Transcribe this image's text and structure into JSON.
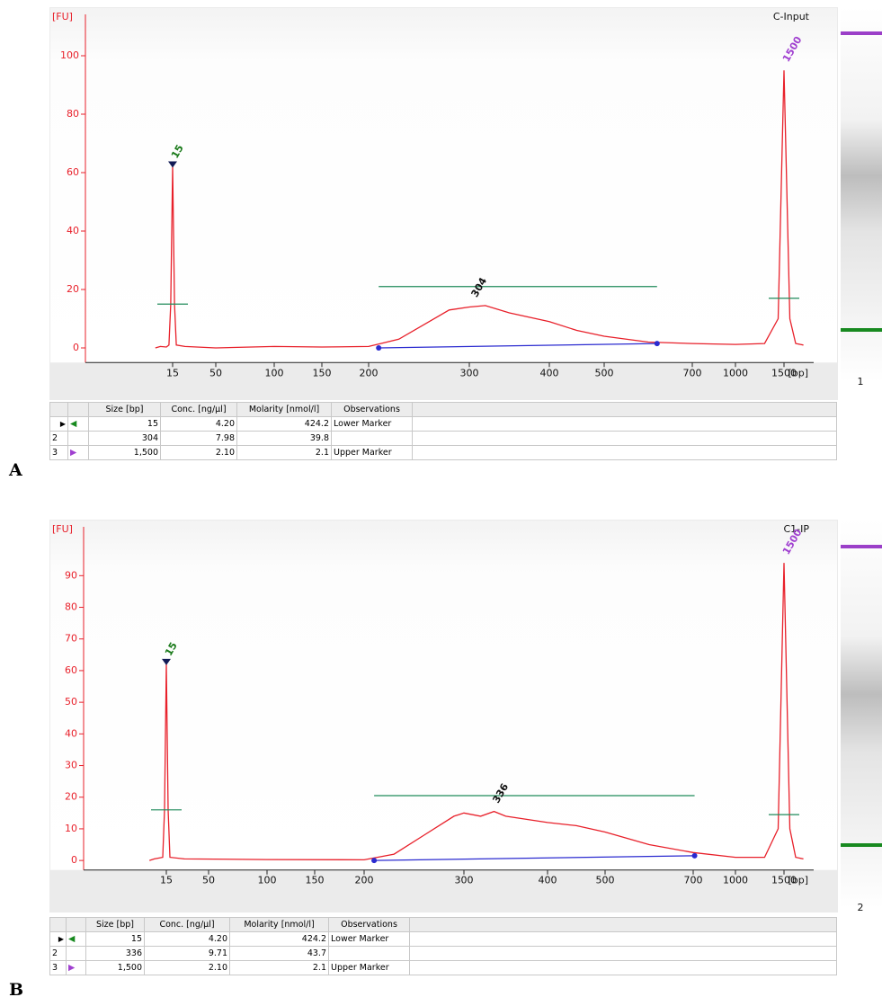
{
  "chart_data": [
    {
      "type": "line",
      "title": "C-Input",
      "y_label": "[FU]",
      "x_label": "[bp]",
      "ylim": [
        -5,
        114
      ],
      "yticks": [
        0,
        20,
        40,
        60,
        80,
        100
      ],
      "xticks": [
        15,
        50,
        100,
        150,
        200,
        300,
        400,
        500,
        700,
        1000,
        1500
      ],
      "series": [
        {
          "color": "#e8202a",
          "x": [
            1,
            5,
            10,
            12,
            13.5,
            15,
            16.5,
            18,
            25,
            50,
            100,
            150,
            200,
            230,
            260,
            280,
            300,
            320,
            350,
            400,
            450,
            500,
            600,
            700,
            1000,
            1300,
            1440,
            1500,
            1560,
            1620,
            1700
          ],
          "values": [
            0,
            0.5,
            0.3,
            1,
            15,
            62,
            15,
            1,
            0.5,
            0,
            0.5,
            0.3,
            0.5,
            3,
            9,
            13,
            14,
            14.5,
            12,
            9,
            6,
            4,
            2,
            1.5,
            1.2,
            1.5,
            10,
            95,
            10,
            1.5,
            1
          ]
        }
      ],
      "baseline": {
        "color": "#2b2bd0",
        "x": [
          210,
          620
        ],
        "values": [
          0,
          1.5
        ]
      },
      "region": {
        "color": "#1f8a5a",
        "x": [
          210,
          620
        ],
        "value": 21
      },
      "peaks": [
        {
          "x": 15,
          "value": 62,
          "half": 15,
          "color": "#1a7a1a"
        },
        {
          "x": 304,
          "value": 14.5,
          "color": "#111111"
        },
        {
          "x": 1500,
          "value": 95,
          "half": 17,
          "color": "#a040d0"
        }
      ]
    },
    {
      "type": "line",
      "title": "C1-IP",
      "y_label": "[FU]",
      "x_label": "[bp]",
      "ylim": [
        -3,
        106
      ],
      "yticks": [
        0,
        10,
        20,
        30,
        40,
        50,
        60,
        70,
        80,
        90
      ],
      "xticks": [
        15,
        50,
        100,
        150,
        200,
        300,
        400,
        500,
        700,
        1000,
        1500
      ],
      "series": [
        {
          "color": "#e8202a",
          "x": [
            1,
            5,
            12,
            13.5,
            15,
            16.5,
            18,
            30,
            100,
            200,
            230,
            260,
            290,
            300,
            320,
            336,
            350,
            400,
            450,
            500,
            600,
            700,
            1000,
            1300,
            1440,
            1500,
            1560,
            1620,
            1700
          ],
          "values": [
            0,
            0.5,
            1,
            16,
            62,
            16,
            1,
            0.5,
            0.3,
            0.2,
            2,
            8,
            14,
            15,
            14,
            15.5,
            14,
            12,
            11,
            9,
            5,
            2.5,
            1,
            1,
            10,
            94,
            10,
            1,
            0.5
          ]
        }
      ],
      "baseline": {
        "color": "#2b2bd0",
        "x": [
          210,
          710
        ],
        "values": [
          0,
          1.5
        ]
      },
      "region": {
        "color": "#1f8a5a",
        "x": [
          210,
          710
        ],
        "value": 20.5
      },
      "peaks": [
        {
          "x": 15,
          "value": 62,
          "half": 16,
          "color": "#1a7a1a"
        },
        {
          "x": 336,
          "value": 15.5,
          "color": "#111111"
        },
        {
          "x": 1500,
          "value": 94,
          "half": 14.5,
          "color": "#a040d0"
        }
      ]
    }
  ],
  "panels": [
    {
      "label": "A",
      "lane": "1",
      "table": {
        "columns": [
          "Size [bp]",
          "Conc. [ng/µl]",
          "Molarity [nmol/l]",
          "Observations"
        ],
        "rows": [
          {
            "cells": [
              "15",
              "4.20",
              "424.2",
              "Lower Marker"
            ]
          },
          {
            "num": "2",
            "cells": [
              "304",
              "7.98",
              "39.8"
            ]
          },
          {
            "num": "3",
            "cells": [
              "1,500",
              "2.10",
              "2.1",
              "Upper Marker"
            ]
          }
        ]
      }
    },
    {
      "label": "B",
      "lane": "2",
      "table": {
        "columns": [
          "Size [bp]",
          "Conc. [ng/µl]",
          "Molarity [nmol/l]",
          "Observations"
        ],
        "rows": [
          {
            "cells": [
              "15",
              "4.20",
              "424.2",
              "Lower Marker"
            ]
          },
          {
            "num": "2",
            "cells": [
              "336",
              "9.71",
              "43.7"
            ]
          },
          {
            "num": "3",
            "cells": [
              "1,500",
              "2.10",
              "2.1",
              "Upper Marker"
            ]
          }
        ]
      }
    }
  ]
}
